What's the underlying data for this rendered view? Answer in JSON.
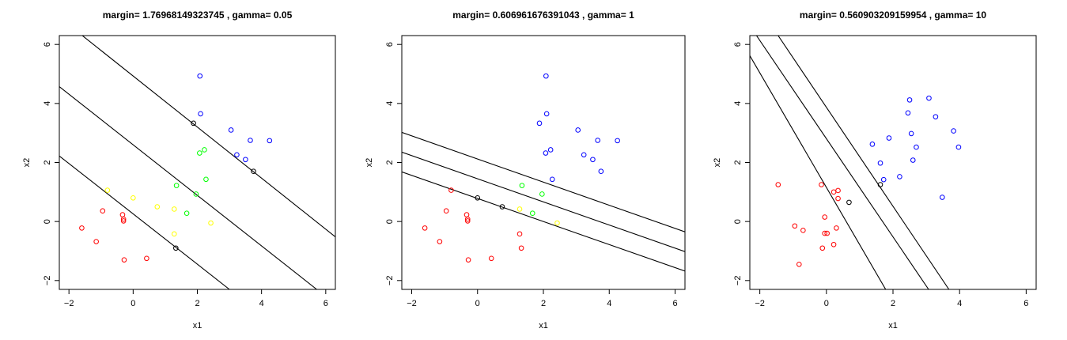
{
  "chart_data": [
    {
      "type": "scatter",
      "title": "margin= 1.76968149323745 , gamma= 0.05",
      "xlabel": "x1",
      "ylabel": "x2",
      "xlim": [
        -2.3,
        6.3
      ],
      "ylim": [
        -2.3,
        6.3
      ],
      "xticks": [
        -2,
        0,
        2,
        4,
        6
      ],
      "yticks": [
        -2,
        0,
        2,
        4,
        6
      ],
      "series": [
        {
          "color": "#ff0000",
          "points": [
            [
              -1.6,
              -0.22
            ],
            [
              -1.15,
              -0.68
            ],
            [
              -0.95,
              0.36
            ],
            [
              -0.33,
              0.23
            ],
            [
              -0.3,
              0.08
            ],
            [
              -0.3,
              0.02
            ],
            [
              -0.28,
              -1.3
            ],
            [
              0.42,
              -1.25
            ]
          ]
        },
        {
          "color": "#ffff00",
          "points": [
            [
              -0.8,
              1.06
            ],
            [
              0.0,
              0.8
            ],
            [
              0.75,
              0.5
            ],
            [
              1.28,
              0.42
            ],
            [
              1.28,
              -0.42
            ],
            [
              2.42,
              -0.05
            ]
          ]
        },
        {
          "color": "#00ff00",
          "points": [
            [
              1.35,
              1.22
            ],
            [
              1.67,
              0.28
            ],
            [
              1.96,
              0.93
            ],
            [
              2.07,
              2.32
            ],
            [
              2.22,
              2.43
            ],
            [
              2.27,
              1.43
            ]
          ]
        },
        {
          "color": "#0000ff",
          "points": [
            [
              2.08,
              4.93
            ],
            [
              2.1,
              3.65
            ],
            [
              3.05,
              3.1
            ],
            [
              3.23,
              2.26
            ],
            [
              3.5,
              2.1
            ],
            [
              3.65,
              2.75
            ],
            [
              4.25,
              2.74
            ]
          ]
        },
        {
          "color": "#000000",
          "points": [
            [
              1.88,
              3.33
            ],
            [
              3.75,
              1.7
            ],
            [
              1.33,
              -0.9
            ]
          ]
        }
      ],
      "lines": [
        {
          "x": [
            -2.3,
            6.3
          ],
          "y": [
            6.92,
            -0.52
          ]
        },
        {
          "x": [
            -2.3,
            5.72
          ],
          "y": [
            4.57,
            -2.3
          ]
        },
        {
          "x": [
            -2.3,
            3.0
          ],
          "y": [
            2.22,
            -2.3
          ]
        }
      ]
    },
    {
      "type": "scatter",
      "title": "margin= 0.606961676391043 , gamma= 1",
      "xlabel": "x1",
      "ylabel": "x2",
      "xlim": [
        -2.3,
        6.3
      ],
      "ylim": [
        -2.3,
        6.3
      ],
      "xticks": [
        -2,
        0,
        2,
        4,
        6
      ],
      "yticks": [
        -2,
        0,
        2,
        4,
        6
      ],
      "series": [
        {
          "color": "#ff0000",
          "points": [
            [
              -1.6,
              -0.22
            ],
            [
              -1.15,
              -0.68
            ],
            [
              -0.95,
              0.36
            ],
            [
              -0.33,
              0.23
            ],
            [
              -0.3,
              0.08
            ],
            [
              -0.3,
              0.02
            ],
            [
              -0.28,
              -1.3
            ],
            [
              0.42,
              -1.25
            ],
            [
              1.28,
              -0.42
            ],
            [
              1.33,
              -0.9
            ],
            [
              -0.8,
              1.06
            ]
          ]
        },
        {
          "color": "#ffff00",
          "points": [
            [
              1.28,
              0.42
            ],
            [
              2.42,
              -0.05
            ]
          ]
        },
        {
          "color": "#00ff00",
          "points": [
            [
              1.35,
              1.22
            ],
            [
              1.67,
              0.28
            ],
            [
              1.96,
              0.93
            ]
          ]
        },
        {
          "color": "#0000ff",
          "points": [
            [
              2.08,
              4.93
            ],
            [
              2.1,
              3.65
            ],
            [
              1.88,
              3.33
            ],
            [
              3.05,
              3.1
            ],
            [
              3.23,
              2.26
            ],
            [
              3.5,
              2.1
            ],
            [
              3.65,
              2.75
            ],
            [
              3.75,
              1.7
            ],
            [
              4.25,
              2.74
            ],
            [
              2.07,
              2.32
            ],
            [
              2.22,
              2.43
            ],
            [
              2.27,
              1.43
            ]
          ]
        },
        {
          "color": "#000000",
          "points": [
            [
              0.0,
              0.8
            ],
            [
              0.75,
              0.5
            ]
          ]
        }
      ],
      "lines": [
        {
          "x": [
            -2.3,
            6.3
          ],
          "y": [
            3.02,
            -0.35
          ]
        },
        {
          "x": [
            -2.3,
            6.3
          ],
          "y": [
            2.35,
            -1.02
          ]
        },
        {
          "x": [
            -2.3,
            6.3
          ],
          "y": [
            1.68,
            -1.68
          ]
        }
      ]
    },
    {
      "type": "scatter",
      "title": "margin= 0.560903209159954 , gamma= 10",
      "xlabel": "x1",
      "ylabel": "x2",
      "xlim": [
        -2.3,
        6.3
      ],
      "ylim": [
        -2.3,
        6.3
      ],
      "xticks": [
        -2,
        0,
        2,
        4,
        6
      ],
      "yticks": [
        -2,
        0,
        2,
        4,
        6
      ],
      "series": [
        {
          "color": "#ff0000",
          "points": [
            [
              -1.45,
              1.25
            ],
            [
              -0.95,
              -0.15
            ],
            [
              -0.82,
              -1.45
            ],
            [
              -0.7,
              -0.3
            ],
            [
              -0.15,
              1.25
            ],
            [
              -0.05,
              0.15
            ],
            [
              -0.05,
              -0.4
            ],
            [
              0.02,
              -0.4
            ],
            [
              -0.12,
              -0.9
            ],
            [
              0.22,
              1.0
            ],
            [
              0.3,
              -0.22
            ],
            [
              0.22,
              -0.78
            ],
            [
              0.35,
              0.78
            ],
            [
              0.35,
              1.05
            ]
          ]
        },
        {
          "color": "#0000ff",
          "points": [
            [
              1.38,
              2.62
            ],
            [
              1.62,
              1.98
            ],
            [
              1.72,
              1.42
            ],
            [
              1.88,
              2.83
            ],
            [
              2.2,
              1.52
            ],
            [
              2.45,
              3.68
            ],
            [
              2.5,
              4.12
            ],
            [
              2.55,
              2.98
            ],
            [
              2.6,
              2.08
            ],
            [
              2.7,
              2.52
            ],
            [
              3.08,
              4.18
            ],
            [
              3.28,
              3.55
            ],
            [
              3.48,
              0.82
            ],
            [
              3.82,
              3.07
            ],
            [
              3.97,
              2.52
            ]
          ]
        },
        {
          "color": "#000000",
          "points": [
            [
              1.62,
              1.25
            ],
            [
              0.68,
              0.65
            ]
          ]
        }
      ],
      "lines": [
        {
          "x": [
            -2.3,
            1.78
          ],
          "y": [
            5.62,
            -2.3
          ]
        },
        {
          "x": [
            -2.1,
            3.07
          ],
          "y": [
            6.3,
            -2.3
          ]
        },
        {
          "x": [
            -1.45,
            3.68
          ],
          "y": [
            6.3,
            -2.3
          ]
        }
      ]
    }
  ]
}
